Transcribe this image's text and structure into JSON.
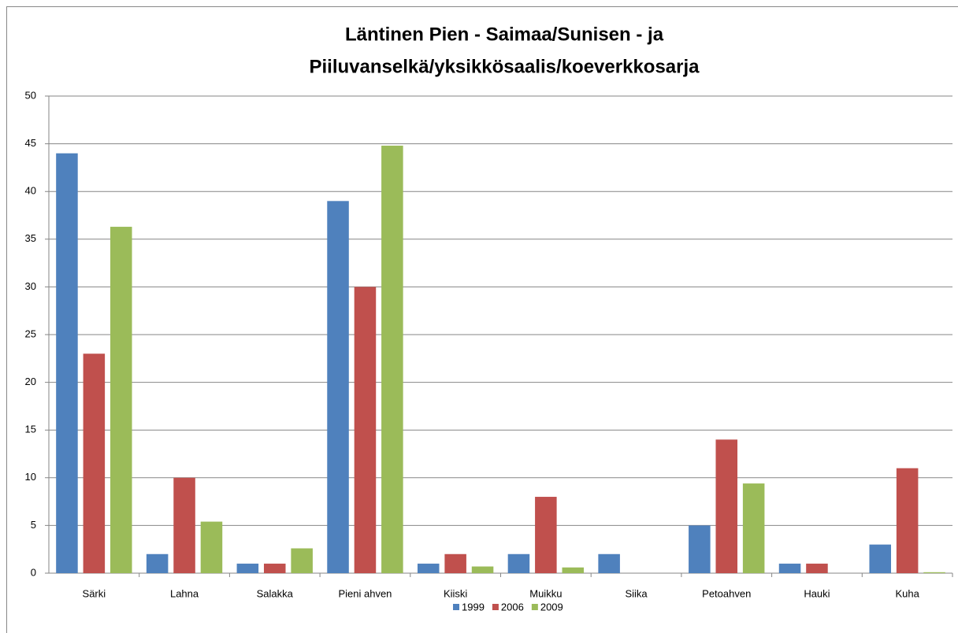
{
  "chart_data": {
    "type": "bar",
    "title": [
      "Läntinen Pien - Saimaa/Sunisen - ja",
      "Piiluvanselkä/yksikkösaalis/koeverkkosarja"
    ],
    "categories": [
      "Särki",
      "Lahna",
      "Salakka",
      "Pieni ahven",
      "Kiiski",
      "Muikku",
      "Siika",
      "Petoahven",
      "Hauki",
      "Kuha"
    ],
    "series": [
      {
        "name": "1999",
        "color": "#4f81bd",
        "values": [
          44,
          2,
          1,
          39,
          1,
          2,
          2,
          5,
          1,
          3
        ]
      },
      {
        "name": "2006",
        "color": "#c0504d",
        "values": [
          23,
          10,
          1,
          30,
          2,
          8,
          0,
          14,
          1,
          11
        ]
      },
      {
        "name": "2009",
        "color": "#9bbb59",
        "values": [
          36.3,
          5.4,
          2.6,
          44.8,
          0.7,
          0.6,
          0,
          9.4,
          0,
          0.1
        ]
      }
    ],
    "ylim": [
      0,
      50
    ],
    "yticks": [
      0,
      5,
      10,
      15,
      20,
      25,
      30,
      35,
      40,
      45,
      50
    ],
    "grid": true,
    "legend": "bottom"
  }
}
